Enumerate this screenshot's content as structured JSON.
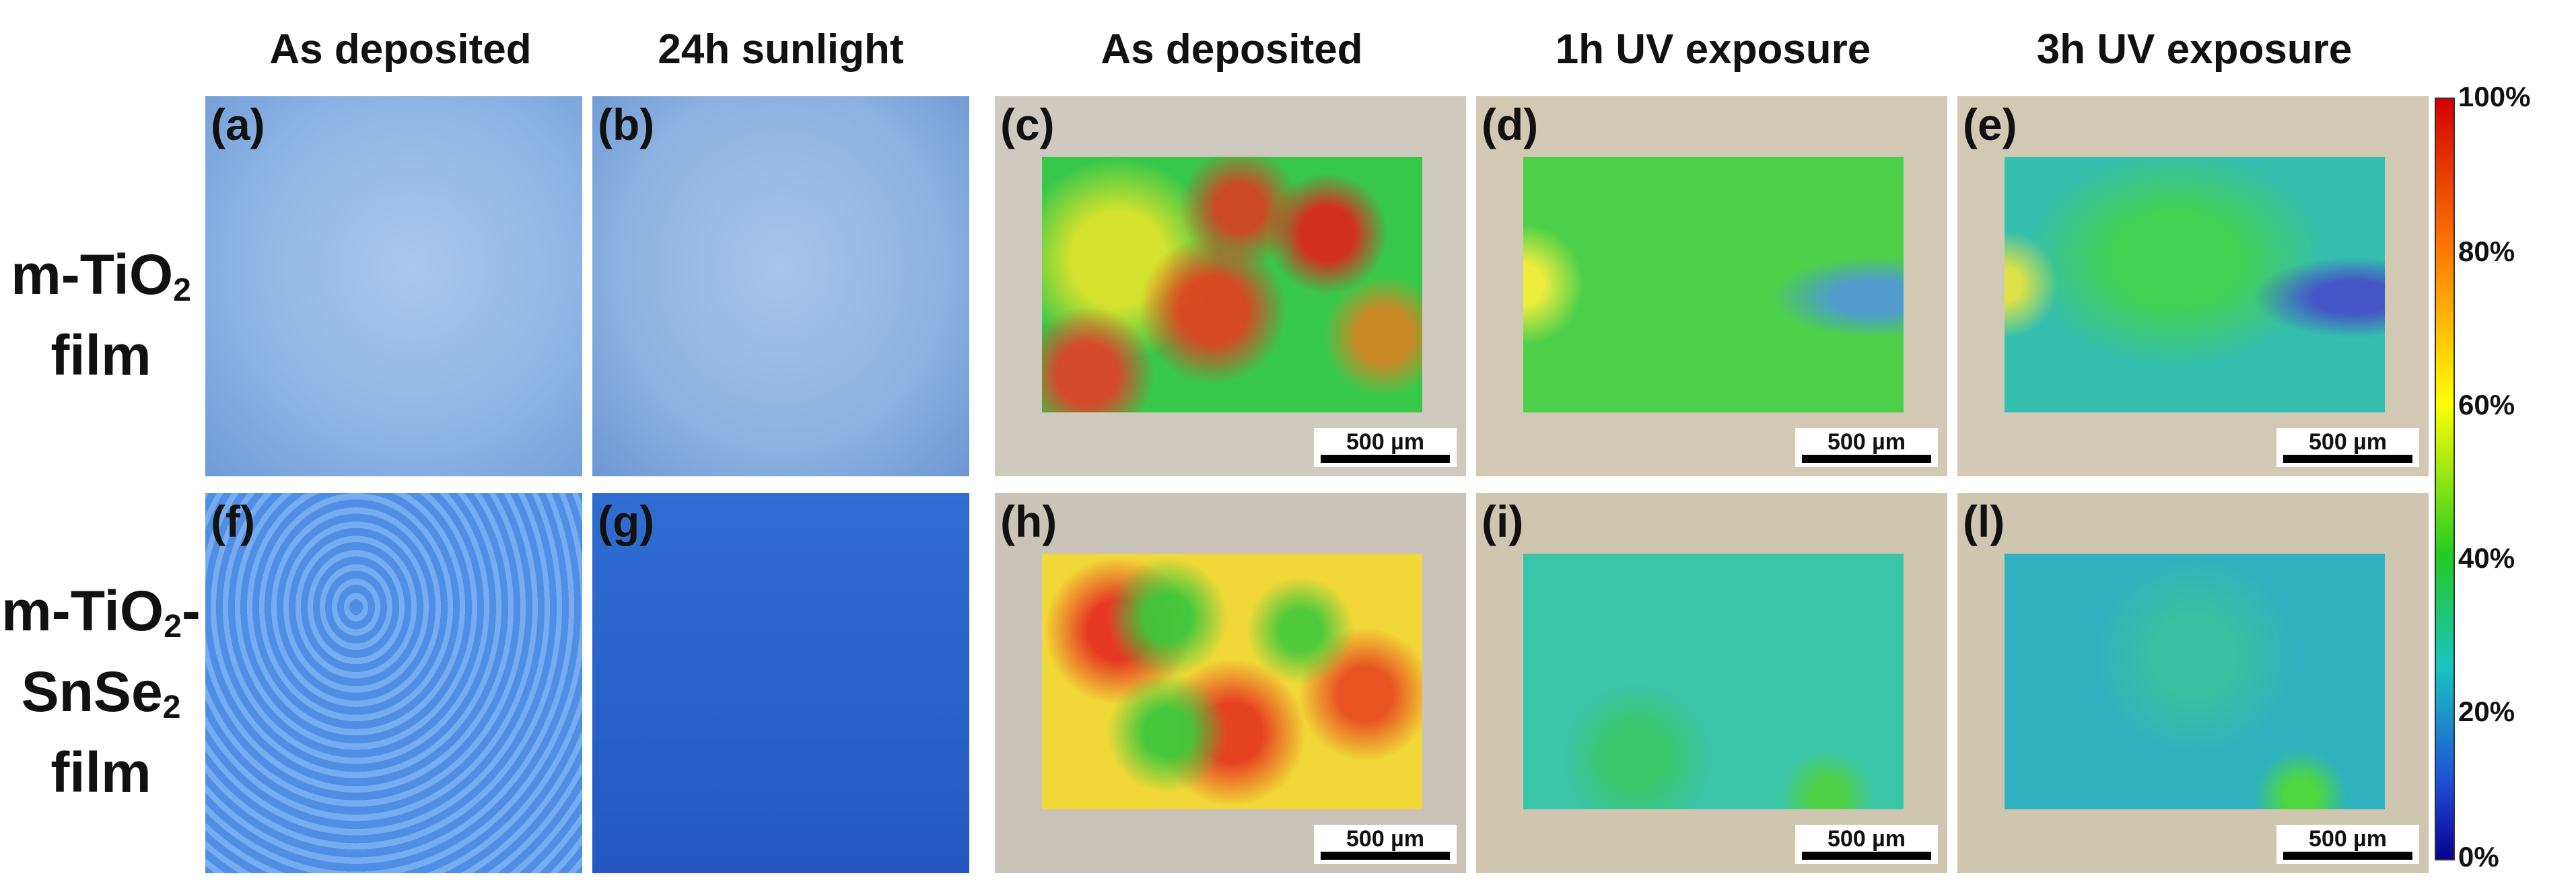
{
  "figure": {
    "column_titles": [
      "As deposited",
      "24h sunlight",
      "As deposited",
      "1h UV exposure",
      "3h UV exposure"
    ],
    "rows": [
      {
        "label_main": "m-TiO",
        "label_sub": "2",
        "label_tail": "",
        "label_line2": "film",
        "panels": [
          "(a)",
          "(b)",
          "(c)",
          "(d)",
          "(e)"
        ]
      },
      {
        "label_main": "m-TiO",
        "label_sub": "2",
        "label_tail": "-",
        "label_line2": "SnSe",
        "label_line2_sub": "2",
        "label_line3": "film",
        "panels": [
          "(f)",
          "(g)",
          "(h)",
          "(i)",
          "(l)"
        ]
      }
    ],
    "scale_bar_label": "500 µm",
    "colorbar": {
      "ticks": [
        "100%",
        "80%",
        "60%",
        "40%",
        "20%",
        "0%"
      ],
      "colors": [
        "#d40000",
        "#ff7a00",
        "#ffff00",
        "#22cc22",
        "#19c2c2",
        "#1e4fd6",
        "#0a0090"
      ]
    },
    "photo_colors": {
      "tio2_film": "#86aee0",
      "snse2_film": "#2a68d0",
      "substrate": "#cfc9bd"
    }
  }
}
